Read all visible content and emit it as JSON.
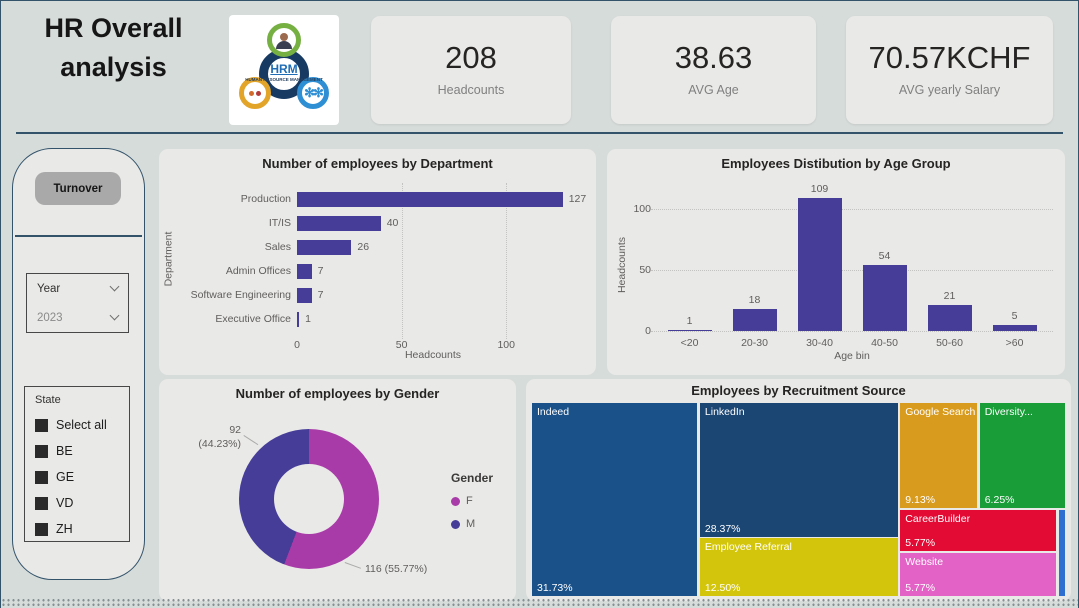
{
  "header": {
    "title_line1": "HR Overall",
    "title_line2": "analysis",
    "logo_text": "HRM",
    "logo_subtext": "HUMAN RESOURCE MANAGEMENT",
    "kpis": [
      {
        "value": "208",
        "label": "Headcounts"
      },
      {
        "value": "38.63",
        "label": "AVG Age"
      },
      {
        "value": "70.57KCHF",
        "label": "AVG yearly Salary"
      }
    ]
  },
  "sidebar": {
    "turnover_label": "Turnover",
    "year_slicer": {
      "label": "Year",
      "value": "2023"
    },
    "state_slicer": {
      "label": "State",
      "options": [
        "Select all",
        "BE",
        "GE",
        "VD",
        "ZH"
      ]
    }
  },
  "chart_data": [
    {
      "type": "bar",
      "orientation": "horizontal",
      "title": "Number of employees by Department",
      "categories": [
        "Production",
        "IT/IS",
        "Sales",
        "Admin Offices",
        "Software Engineering",
        "Executive Office"
      ],
      "values": [
        127,
        40,
        26,
        7,
        7,
        1
      ],
      "xlabel": "Headcounts",
      "ylabel": "Department",
      "xticks": [
        0,
        50,
        100
      ],
      "xlim": [
        0,
        130
      ],
      "grid": "vertical-dotted",
      "color": "#463d99"
    },
    {
      "type": "bar",
      "orientation": "vertical",
      "title": "Employees Distibution by Age Group",
      "categories": [
        "<20",
        "20-30",
        "30-40",
        "40-50",
        "50-60",
        ">60"
      ],
      "values": [
        1,
        18,
        109,
        54,
        21,
        5
      ],
      "xlabel": "Age bin",
      "ylabel": "Headcounts",
      "yticks": [
        0,
        50,
        100
      ],
      "ylim": [
        0,
        109
      ],
      "grid": "horizontal-dotted",
      "color": "#463d99"
    },
    {
      "type": "pie",
      "subtype": "donut",
      "title": "Number of employees by Gender",
      "legend_title": "Gender",
      "legend_position": "right",
      "slices": [
        {
          "name": "F",
          "value": 116,
          "pct": "55.77%",
          "color": "#a93ba9",
          "label_lines": [
            "116 (55.77%)"
          ]
        },
        {
          "name": "M",
          "value": 92,
          "pct": "44.23%",
          "color": "#463d99",
          "label_lines": [
            "92",
            "(44.23%)"
          ]
        }
      ]
    },
    {
      "type": "treemap",
      "title": "Employees by Recruitment Source",
      "tiles": [
        {
          "name": "Indeed",
          "pct": "31.73%",
          "color": "#1a5189"
        },
        {
          "name": "LinkedIn",
          "pct": "28.37%",
          "color": "#1b4573"
        },
        {
          "name": "Employee Referral",
          "pct": "12.50%",
          "color": "#d3c50b"
        },
        {
          "name": "Google Search",
          "pct": "9.13%",
          "color": "#d89b1d"
        },
        {
          "name": "Diversity...",
          "pct": "6.25%",
          "color": "#189d38"
        },
        {
          "name": "CareerBuilder",
          "pct": "5.77%",
          "color": "#e30b34"
        },
        {
          "name": "Website",
          "pct": "5.77%",
          "color": "#e263c5"
        },
        {
          "name": "",
          "pct": "",
          "color": "#2f6fd0"
        }
      ]
    }
  ]
}
